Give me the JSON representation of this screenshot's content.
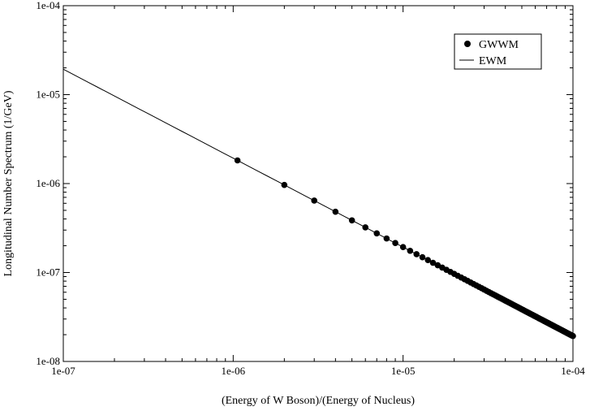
{
  "chart_data": {
    "type": "line",
    "title": "",
    "xlabel": "(Energy of W Boson)/(Energy of Nucleus)",
    "ylabel": "Longitudinal Number Spectrum (1/GeV)",
    "xscale": "log",
    "yscale": "log",
    "xlim": [
      1e-07,
      0.0001
    ],
    "ylim": [
      1e-08,
      0.0001
    ],
    "x_ticks": [
      "1e-07",
      "1e-06",
      "1e-05",
      "1e-04"
    ],
    "y_ticks": [
      "1e-08",
      "1e-07",
      "1e-06",
      "1e-05",
      "1e-04"
    ],
    "grid": false,
    "legend": {
      "position": "top-right",
      "entries": [
        "GWWM",
        "EWM"
      ]
    },
    "series": [
      {
        "name": "GWWM",
        "style": "markers",
        "marker": "filled-circle",
        "relation": "y = 1.93e-12 / x",
        "x_start": 1.06e-06,
        "x_step": 1e-06,
        "x_end": 0.0001
      },
      {
        "name": "EWM",
        "style": "line",
        "relation": "y = 1.93e-12 / x",
        "x_start": 1e-07,
        "x_end": 0.0001
      }
    ]
  }
}
